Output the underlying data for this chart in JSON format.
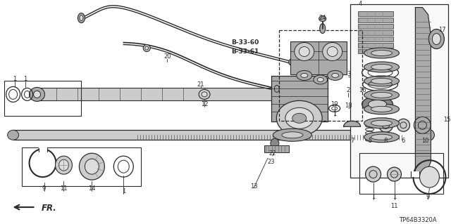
{
  "bg_color": "#ffffff",
  "line_color": "#2a2a2a",
  "fig_width": 6.4,
  "fig_height": 3.19,
  "dpi": 100,
  "watermark": "TP64B3320A",
  "fr_label": "FR."
}
